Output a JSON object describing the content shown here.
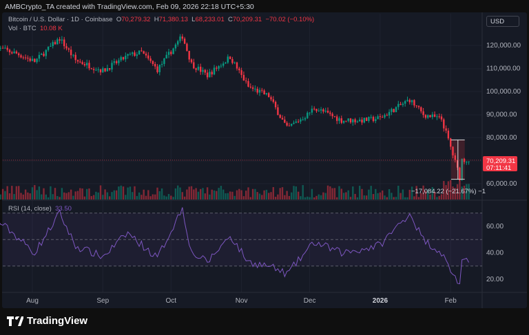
{
  "credit": "AMBCrypto_TA created with TradingView.com, Feb 09, 2026 22:18 UTC+5:30",
  "legend": {
    "symbol": "Bitcoin / U.S. Dollar · 1D · Coinbase",
    "o_label": "O",
    "o": "70,279.32",
    "h_label": "H",
    "h": "71,380.13",
    "l_label": "L",
    "l": "68,233.01",
    "c_label": "C",
    "c": "70,209.31",
    "change": "−70.02 (−0.10%)",
    "vol_label": "Vol · BTC",
    "vol": "10.08 K"
  },
  "currency": "USD",
  "rsi": {
    "label": "RSI (14, close)",
    "value": "33.50"
  },
  "price_badge": {
    "price": "70,209.31",
    "countdown": "07:11:41"
  },
  "measure_label": "−17,084.22 (−21.67%) −1",
  "brand": "TradingView",
  "colors": {
    "up": "#089981",
    "down": "#f23645",
    "rsi": "#7e57c2",
    "background": "#161a25"
  },
  "chart_data": {
    "type": "candlestick",
    "price_axis": {
      "ticks": [
        "120,000.00",
        "110,000.00",
        "100,000.00",
        "90,000.00",
        "80,000.00",
        "60,000.00"
      ],
      "range": [
        54000,
        134000
      ]
    },
    "time_axis": {
      "ticks": [
        "Aug",
        "Sep",
        "Oct",
        "Nov",
        "Dec",
        "2026",
        "Feb"
      ]
    },
    "close_path": [
      [
        "2025-07-16",
        119000
      ],
      [
        "2025-07-25",
        116500
      ],
      [
        "2025-08-02",
        113000
      ],
      [
        "2025-08-13",
        123000
      ],
      [
        "2025-08-20",
        113500
      ],
      [
        "2025-09-01",
        109000
      ],
      [
        "2025-09-12",
        115500
      ],
      [
        "2025-09-18",
        117000
      ],
      [
        "2025-09-25",
        109500
      ],
      [
        "2025-10-06",
        124000
      ],
      [
        "2025-10-10",
        112000
      ],
      [
        "2025-10-17",
        107000
      ],
      [
        "2025-10-27",
        115000
      ],
      [
        "2025-11-04",
        102000
      ],
      [
        "2025-11-13",
        98000
      ],
      [
        "2025-11-21",
        84000
      ],
      [
        "2025-11-30",
        90000
      ],
      [
        "2025-12-03",
        93000
      ],
      [
        "2025-12-15",
        87500
      ],
      [
        "2025-12-25",
        87500
      ],
      [
        "2026-01-01",
        88500
      ],
      [
        "2026-01-14",
        96500
      ],
      [
        "2026-01-20",
        90000
      ],
      [
        "2026-01-28",
        88000
      ],
      [
        "2026-01-31",
        79000
      ],
      [
        "2026-02-05",
        63000
      ],
      [
        "2026-02-06",
        70500
      ],
      [
        "2026-02-09",
        70209
      ]
    ],
    "rsi_axis": {
      "ticks": [
        "60.00",
        "40.00",
        "20.00"
      ],
      "levels": [
        70,
        50,
        30
      ],
      "range": [
        10,
        80
      ]
    },
    "rsi_path": [
      [
        "2025-07-16",
        65
      ],
      [
        "2025-07-22",
        57
      ],
      [
        "2025-08-02",
        40
      ],
      [
        "2025-08-13",
        70
      ],
      [
        "2025-08-20",
        45
      ],
      [
        "2025-09-01",
        37
      ],
      [
        "2025-09-12",
        55
      ],
      [
        "2025-09-25",
        36
      ],
      [
        "2025-10-06",
        74
      ],
      [
        "2025-10-10",
        40
      ],
      [
        "2025-10-17",
        33
      ],
      [
        "2025-10-27",
        53
      ],
      [
        "2025-11-04",
        33
      ],
      [
        "2025-11-13",
        30
      ],
      [
        "2025-11-21",
        24
      ],
      [
        "2025-11-30",
        42
      ],
      [
        "2025-12-03",
        48
      ],
      [
        "2025-12-15",
        40
      ],
      [
        "2025-12-25",
        43
      ],
      [
        "2026-01-01",
        46
      ],
      [
        "2026-01-14",
        70
      ],
      [
        "2026-01-20",
        50
      ],
      [
        "2026-01-28",
        40
      ],
      [
        "2026-01-31",
        30
      ],
      [
        "2026-02-05",
        16
      ],
      [
        "2026-02-06",
        32
      ],
      [
        "2026-02-09",
        33.5
      ]
    ],
    "measurement": {
      "from": 79000,
      "to": 61900,
      "change": "−17,084.22",
      "percent": "−21.67%"
    }
  }
}
